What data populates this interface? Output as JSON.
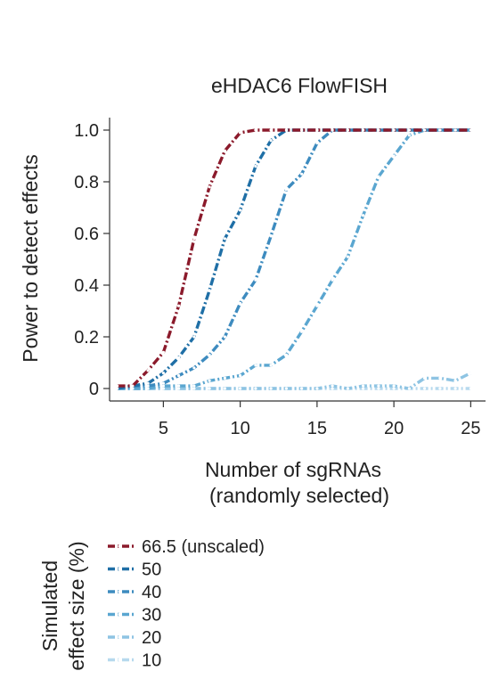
{
  "chart_data": {
    "type": "line",
    "title": "eHDAC6 FlowFISH",
    "xlabel": [
      "Number of sgRNAs",
      "(randomly selected)"
    ],
    "ylabel": "Power to detect effects",
    "xlim": [
      1.5,
      25.5
    ],
    "ylim": [
      0,
      1.0
    ],
    "xticks": [
      5,
      10,
      15,
      20,
      25
    ],
    "xtick_labels": [
      "5",
      "10",
      "15",
      "20",
      "25"
    ],
    "yticks": [
      0,
      0.2,
      0.4,
      0.6,
      0.8,
      1.0
    ],
    "ytick_labels": [
      "0",
      "0.2",
      "0.4",
      "0.6",
      "0.8",
      "1.0"
    ],
    "grid": false,
    "legend_title": [
      "Simulated",
      "effect size (%)"
    ],
    "legend_position": "bottom",
    "x": [
      2,
      3,
      4,
      5,
      6,
      7,
      8,
      9,
      10,
      11,
      12,
      13,
      14,
      15,
      16,
      17,
      18,
      19,
      20,
      21,
      22,
      23,
      24,
      25
    ],
    "series": [
      {
        "name": "66.5 (unscaled)",
        "color": "#8b1a2b",
        "values": [
          0.01,
          0.01,
          0.07,
          0.14,
          0.32,
          0.58,
          0.78,
          0.92,
          0.99,
          1.0,
          1.0,
          1.0,
          1.0,
          1.0,
          1.0,
          1.0,
          1.0,
          1.0,
          1.0,
          1.0,
          1.0,
          1.0,
          1.0,
          1.0
        ]
      },
      {
        "name": "50",
        "color": "#1f6fa6",
        "values": [
          0.0,
          0.01,
          0.02,
          0.06,
          0.12,
          0.2,
          0.38,
          0.58,
          0.69,
          0.86,
          0.96,
          1.0,
          1.0,
          1.0,
          1.0,
          1.0,
          1.0,
          1.0,
          1.0,
          1.0,
          1.0,
          1.0,
          1.0,
          1.0
        ]
      },
      {
        "name": "40",
        "color": "#3d8bbf",
        "values": [
          0.0,
          0.01,
          0.01,
          0.02,
          0.05,
          0.08,
          0.13,
          0.2,
          0.33,
          0.42,
          0.59,
          0.77,
          0.83,
          0.95,
          1.0,
          1.0,
          1.0,
          1.0,
          1.0,
          1.0,
          1.0,
          1.0,
          1.0,
          1.0
        ]
      },
      {
        "name": "30",
        "color": "#5aa6d0",
        "values": [
          0.0,
          0.0,
          0.0,
          0.01,
          0.01,
          0.01,
          0.03,
          0.04,
          0.05,
          0.09,
          0.09,
          0.13,
          0.22,
          0.32,
          0.42,
          0.51,
          0.67,
          0.82,
          0.9,
          0.98,
          1.0,
          1.0,
          1.0,
          1.0
        ]
      },
      {
        "name": "20",
        "color": "#8ec4e3",
        "values": [
          0.0,
          0.0,
          0.0,
          0.0,
          0.0,
          0.0,
          0.0,
          0.0,
          0.0,
          0.0,
          0.0,
          0.0,
          0.0,
          0.0,
          0.01,
          0.0,
          0.01,
          0.01,
          0.01,
          0.0,
          0.04,
          0.04,
          0.03,
          0.06
        ]
      },
      {
        "name": "10",
        "color": "#b6d9ee",
        "values": [
          0.0,
          0.0,
          0.0,
          0.0,
          0.0,
          0.0,
          0.0,
          0.0,
          0.0,
          0.0,
          0.0,
          0.0,
          0.0,
          0.0,
          0.0,
          0.0,
          0.0,
          0.0,
          0.0,
          0.0,
          0.0,
          0.0,
          0.0,
          0.0
        ]
      }
    ]
  }
}
